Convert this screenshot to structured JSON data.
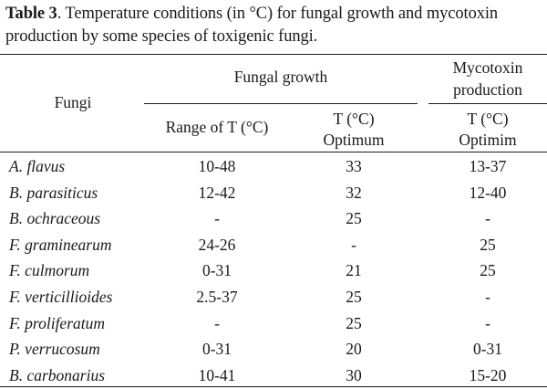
{
  "caption": {
    "label": "Table 3",
    "text": ". Temperature conditions (in °C) for fungal growth and mycotoxin production by some species of toxigenic fungi."
  },
  "table": {
    "header": {
      "fungi": "Fungi",
      "group_growth": "Fungal growth",
      "group_mycotoxin_line1": "Mycotoxin",
      "group_mycotoxin_line2": "production",
      "range": "Range of T (°C)",
      "optimum_line1": "T (°C)",
      "optimum_line2": "Optimum",
      "optimim_line1": "T (°C)",
      "optimim_line2": "Optimim"
    },
    "rows": [
      {
        "fungus": "A. flavus",
        "range": "10-48",
        "optimum": "33",
        "mycotoxin": "13-37"
      },
      {
        "fungus": "B. parasiticus",
        "range": "12-42",
        "optimum": "32",
        "mycotoxin": "12-40"
      },
      {
        "fungus": "B. ochraceous",
        "range": "-",
        "optimum": "25",
        "mycotoxin": "-"
      },
      {
        "fungus": "F. graminearum",
        "range": "24-26",
        "optimum": "-",
        "mycotoxin": "25"
      },
      {
        "fungus": "F. culmorum",
        "range": "0-31",
        "optimum": "21",
        "mycotoxin": "25"
      },
      {
        "fungus": "F. verticillioides",
        "range": "2.5-37",
        "optimum": "25",
        "mycotoxin": "-"
      },
      {
        "fungus": "F. proliferatum",
        "range": "-",
        "optimum": "25",
        "mycotoxin": "-"
      },
      {
        "fungus": "P. verrucosum",
        "range": "0-31",
        "optimum": "20",
        "mycotoxin": "0-31"
      },
      {
        "fungus": "B. carbonarius",
        "range": "10-41",
        "optimum": "30",
        "mycotoxin": "15-20"
      }
    ]
  }
}
